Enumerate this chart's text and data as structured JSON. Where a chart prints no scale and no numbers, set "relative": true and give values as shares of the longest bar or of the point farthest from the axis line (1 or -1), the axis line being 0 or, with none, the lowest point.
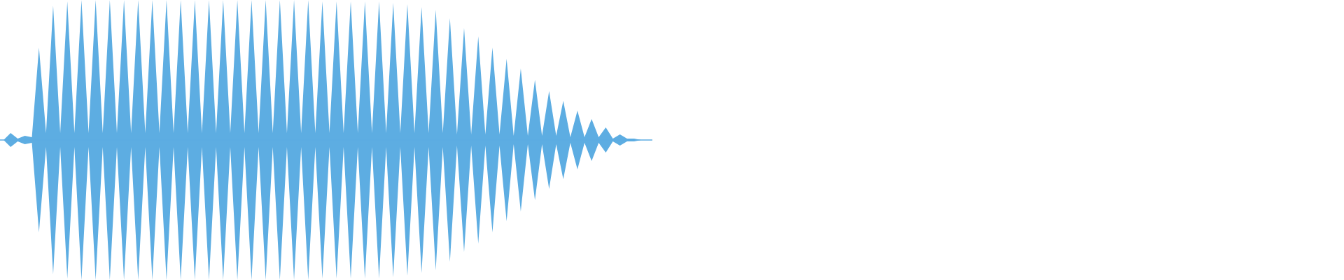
{
  "chart_data": {
    "type": "area",
    "relative": true,
    "categories": [
      null,
      null,
      null,
      null,
      null,
      null,
      null,
      null,
      null,
      null,
      null,
      null,
      null,
      null,
      null,
      null,
      null,
      null,
      null,
      null,
      null,
      null,
      null,
      null,
      null,
      null,
      null,
      null,
      null,
      null,
      null,
      null,
      null,
      null,
      null,
      null,
      null,
      null,
      null,
      null,
      null,
      null,
      null,
      null,
      null,
      null,
      null,
      null,
      null,
      null,
      null,
      null,
      null,
      null,
      null,
      null,
      null,
      null,
      null,
      null,
      null,
      null,
      null,
      null,
      null,
      null,
      null,
      null,
      null,
      null,
      null,
      null,
      null,
      null,
      null,
      null,
      null,
      null,
      null,
      null,
      null,
      null,
      null,
      null,
      null,
      null,
      null,
      null,
      null,
      null,
      null,
      null
    ],
    "series": [
      {
        "color": "#5dade2",
        "values": [
          0,
          0.05,
          0.01,
          0.03,
          0.02,
          0.66,
          0.05,
          0.96,
          0.05,
          0.99,
          0.05,
          1,
          0.05,
          1,
          0.05,
          1,
          0.05,
          1,
          0.05,
          1,
          0.05,
          1,
          0.05,
          1,
          0.05,
          1,
          0.05,
          1,
          0.05,
          1,
          0.05,
          1,
          0.05,
          1,
          0.05,
          1,
          0.05,
          1,
          0.05,
          1,
          0.05,
          1,
          0.05,
          1,
          0.05,
          0.99,
          0.05,
          0.99,
          0.05,
          0.99,
          0.05,
          0.99,
          0.05,
          0.99,
          0.05,
          0.98,
          0.05,
          0.97,
          0.05,
          0.95,
          0.05,
          0.93,
          0.05,
          0.87,
          0.04,
          0.8,
          0.04,
          0.74,
          0.04,
          0.66,
          0.04,
          0.58,
          0.03,
          0.51,
          0.03,
          0.43,
          0.03,
          0.35,
          0.03,
          0.28,
          0.02,
          0.21,
          0.02,
          0.15,
          0.02,
          0.09,
          0.01,
          0.04,
          0.01,
          0.01,
          0,
          0
        ]
      },
      {
        "color": "#5dade2",
        "values": [
          0,
          -0.05,
          -0.01,
          -0.03,
          -0.02,
          -0.66,
          -0.05,
          -0.96,
          -0.05,
          -0.99,
          -0.05,
          -1,
          -0.05,
          -1,
          -0.05,
          -1,
          -0.05,
          -1,
          -0.05,
          -1,
          -0.05,
          -1,
          -0.05,
          -1,
          -0.05,
          -1,
          -0.05,
          -1,
          -0.05,
          -1,
          -0.05,
          -1,
          -0.05,
          -1,
          -0.05,
          -1,
          -0.05,
          -1,
          -0.05,
          -1,
          -0.05,
          -1,
          -0.05,
          -1,
          -0.05,
          -0.99,
          -0.05,
          -0.99,
          -0.05,
          -0.99,
          -0.05,
          -0.99,
          -0.05,
          -0.99,
          -0.05,
          -0.98,
          -0.05,
          -0.97,
          -0.05,
          -0.95,
          -0.05,
          -0.93,
          -0.05,
          -0.87,
          -0.04,
          -0.8,
          -0.04,
          -0.74,
          -0.04,
          -0.66,
          -0.04,
          -0.58,
          -0.03,
          -0.51,
          -0.03,
          -0.43,
          -0.03,
          -0.35,
          -0.03,
          -0.28,
          -0.02,
          -0.21,
          -0.02,
          -0.15,
          -0.02,
          -0.09,
          -0.01,
          -0.04,
          -0.01,
          -0.01,
          0,
          0
        ]
      }
    ]
  }
}
